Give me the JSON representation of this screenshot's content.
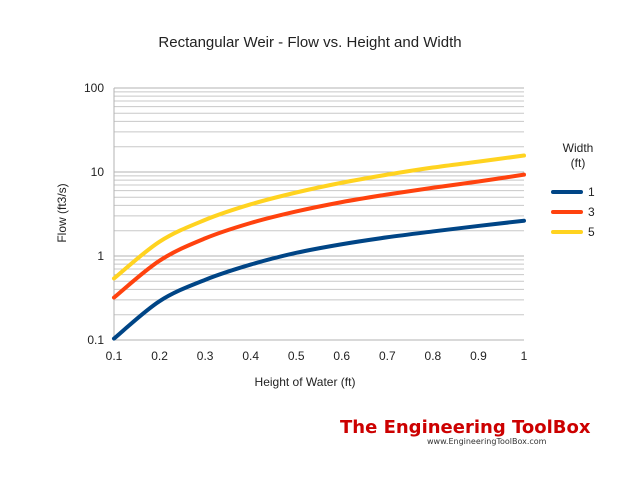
{
  "chart_data": {
    "type": "line",
    "title": "Rectangular Weir - Flow vs. Height and Width",
    "xlabel": "Height of Water (ft)",
    "ylabel": "Flow (ft3/s)",
    "x_scale": "linear",
    "y_scale": "log",
    "xlim": [
      0.1,
      1
    ],
    "ylim": [
      0.1,
      100
    ],
    "x_ticks": [
      "0.1",
      "0.2",
      "0.3",
      "0.4",
      "0.5",
      "0.6",
      "0.7",
      "0.8",
      "0.9",
      "1"
    ],
    "y_ticks": [
      "0.1",
      "1",
      "10",
      "100"
    ],
    "grid": true,
    "legend": {
      "title_line1": "Width",
      "title_line2": "(ft)",
      "position": "right"
    },
    "x": [
      0.1,
      0.2,
      0.3,
      0.4,
      0.5,
      0.6,
      0.7,
      0.8,
      0.9,
      1.0
    ],
    "series": [
      {
        "name": "1",
        "color": "#004586",
        "values": [
          0.104,
          0.29,
          0.52,
          0.79,
          1.09,
          1.38,
          1.67,
          1.96,
          2.28,
          2.63
        ]
      },
      {
        "name": "3",
        "color": "#ff420e",
        "values": [
          0.32,
          0.88,
          1.62,
          2.47,
          3.39,
          4.38,
          5.4,
          6.5,
          7.7,
          9.3
        ]
      },
      {
        "name": "5",
        "color": "#ffd320",
        "values": [
          0.54,
          1.48,
          2.69,
          4.12,
          5.7,
          7.45,
          9.3,
          11.3,
          13.3,
          15.7
        ]
      }
    ]
  },
  "branding": {
    "main": "The Engineering ToolBox",
    "sub": "www.EngineeringToolBox.com"
  }
}
